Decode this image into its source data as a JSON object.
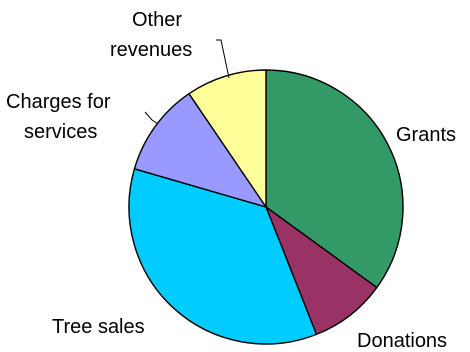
{
  "chart_data": {
    "type": "pie",
    "start_angle": "12 o'clock",
    "direction": "clockwise",
    "slices": [
      {
        "label": "Grants",
        "value": 35,
        "color": "#339966"
      },
      {
        "label": "Donations",
        "value": 9,
        "color": "#993366"
      },
      {
        "label": "Tree sales",
        "value": 35.5,
        "color": "#00ccff"
      },
      {
        "label": "Charges for services",
        "value": 11,
        "color": "#9999ff"
      },
      {
        "label": "Other revenues",
        "value": 9.5,
        "color": "#ffff99"
      }
    ]
  }
}
